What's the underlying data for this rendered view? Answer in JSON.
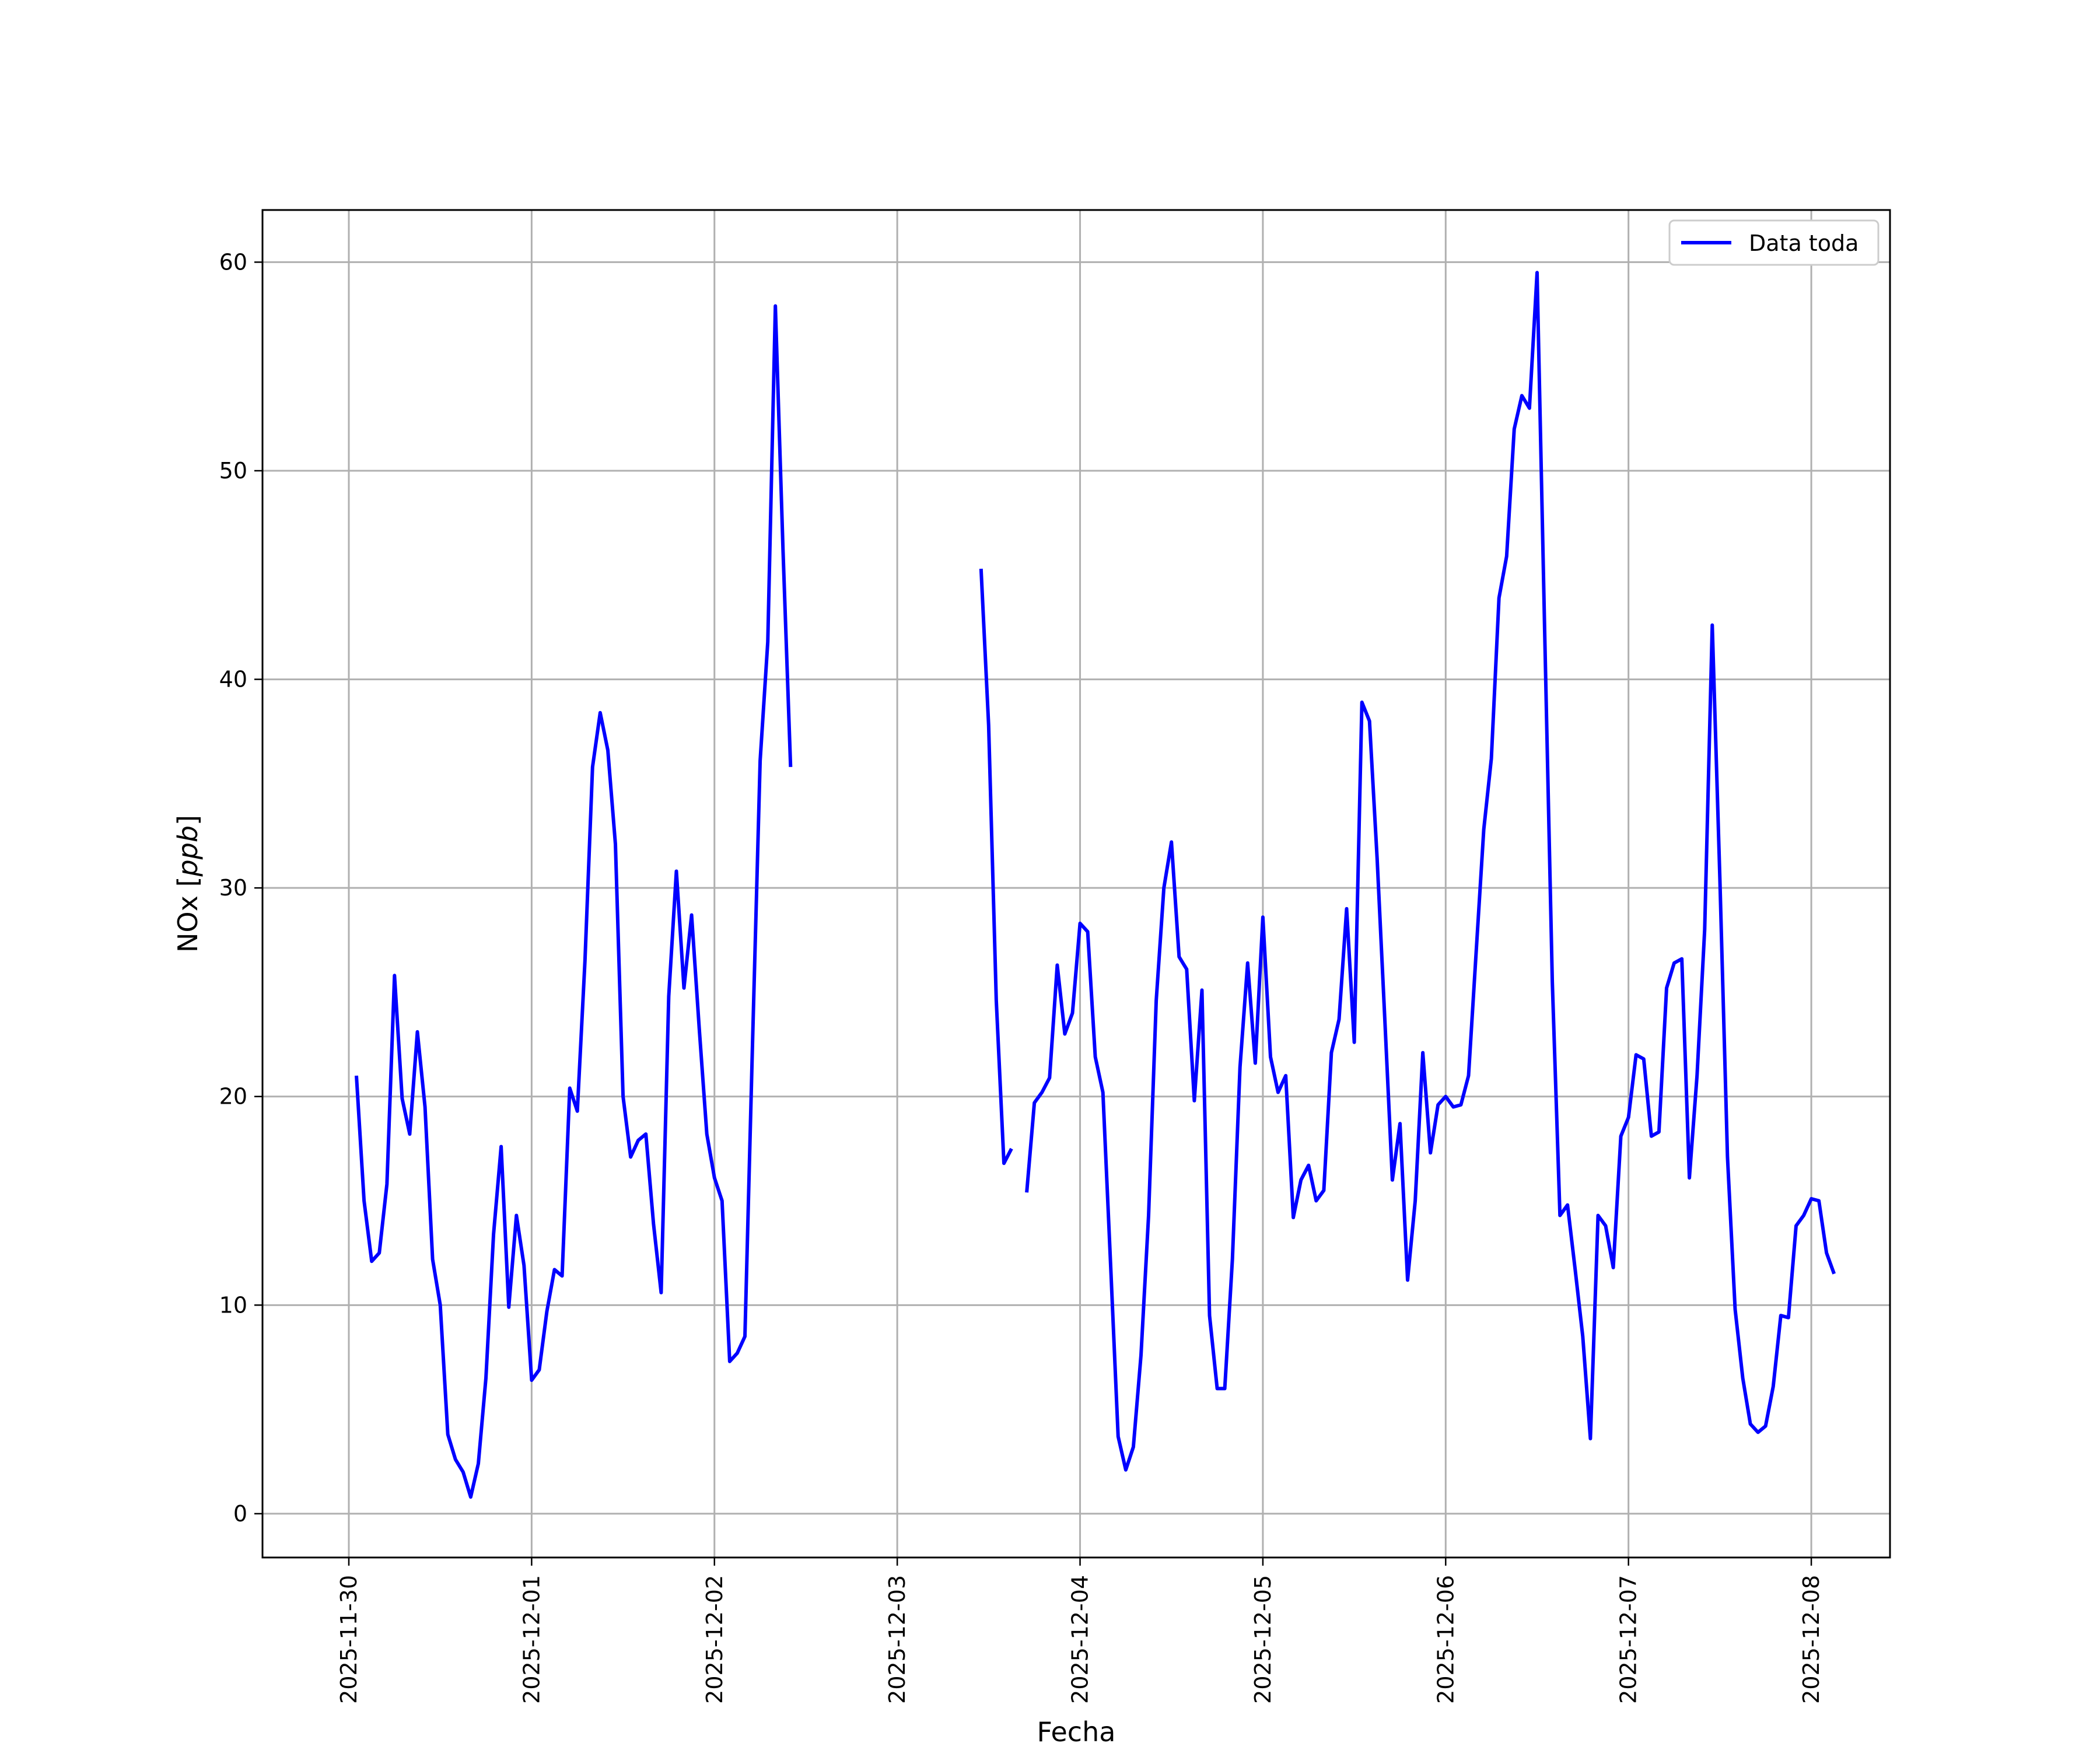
{
  "chart_data": {
    "type": "line",
    "title": "",
    "xlabel": "Fecha",
    "ylabel_text": "NOx [",
    "ylabel_unit": "ppb",
    "ylabel_close": "]",
    "x_ticks": [
      "2025-11-30",
      "2025-12-01",
      "2025-12-02",
      "2025-12-03",
      "2025-12-04",
      "2025-12-05",
      "2025-12-06",
      "2025-12-07",
      "2025-12-08"
    ],
    "y_ticks": [
      0,
      10,
      20,
      30,
      40,
      50,
      60
    ],
    "xlim": [
      "2025-11-29T12:40",
      "2025-12-08T10:20"
    ],
    "ylim": [
      -2.1,
      62.5
    ],
    "grid": true,
    "legend_position": "top-right",
    "colors": {
      "series": "#0000ff"
    },
    "series": [
      {
        "name": "Data toda",
        "x_start": "2025-11-30T01:00",
        "x_step_hours": 1,
        "values": [
          21.0,
          15.0,
          12.1,
          12.5,
          15.8,
          25.8,
          19.9,
          18.2,
          23.1,
          19.5,
          12.2,
          10.0,
          3.8,
          2.6,
          2.0,
          0.8,
          2.4,
          6.5,
          13.4,
          17.6,
          9.9,
          14.3,
          11.9,
          6.4,
          6.9,
          9.7,
          11.7,
          11.4,
          20.4,
          19.3,
          26.5,
          35.8,
          38.4,
          36.6,
          32.1,
          20.0,
          17.1,
          17.9,
          18.2,
          13.9,
          10.6,
          24.8,
          30.8,
          25.2,
          28.7,
          23.3,
          18.2,
          16.1,
          15.0,
          7.3,
          7.7,
          8.5,
          22.5,
          36.1,
          41.8,
          57.9,
          46.2,
          35.8,
          null,
          null,
          null,
          null,
          null,
          null,
          null,
          null,
          null,
          null,
          null,
          null,
          null,
          null,
          null,
          null,
          null,
          null,
          null,
          null,
          null,
          null,
          null,
          null,
          45.3,
          37.8,
          24.6,
          16.8,
          17.5,
          null,
          15.4,
          19.7,
          20.2,
          20.9,
          26.3,
          23.0,
          24.0,
          28.3,
          27.9,
          21.9,
          20.2,
          12.0,
          3.7,
          2.1,
          3.2,
          7.6,
          14.3,
          24.6,
          30.0,
          32.2,
          26.7,
          26.1,
          19.8,
          25.1,
          9.5,
          6.0,
          6.0,
          12.2,
          21.4,
          26.4,
          21.6,
          28.6,
          21.9,
          20.2,
          21.0,
          14.2,
          16.0,
          16.7,
          15.0,
          15.5,
          22.1,
          23.7,
          29.0,
          22.6,
          38.9,
          38.0,
          31.4,
          23.8,
          16.0,
          18.7,
          11.2,
          15.0,
          22.1,
          17.3,
          19.6,
          20.0,
          19.5,
          19.6,
          21.0,
          26.9,
          32.8,
          36.2,
          43.9,
          45.9,
          52.0,
          53.6,
          53.0,
          59.5,
          42.3,
          25.5,
          14.3,
          14.8,
          11.7,
          8.5,
          3.6,
          14.3,
          13.8,
          11.8,
          18.1,
          19.0,
          22.0,
          21.8,
          18.1,
          18.3,
          25.2,
          26.4,
          26.6,
          16.1,
          21.0,
          28.0,
          42.6,
          30.4,
          17.1,
          9.8,
          6.5,
          4.3,
          3.9,
          4.2,
          6.1,
          9.5,
          9.4,
          13.8,
          14.3,
          15.1,
          15.0,
          12.5,
          11.5
        ]
      }
    ]
  }
}
